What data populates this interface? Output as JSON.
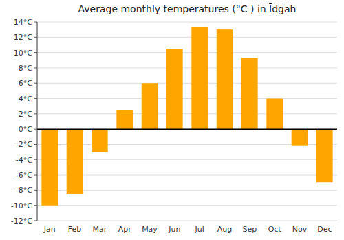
{
  "chart_data": {
    "type": "bar",
    "title": "Average monthly temperatures (°C ) in Īdgāh",
    "categories": [
      "Jan",
      "Feb",
      "Mar",
      "Apr",
      "May",
      "Jun",
      "Jul",
      "Aug",
      "Sep",
      "Oct",
      "Nov",
      "Dec"
    ],
    "values": [
      -10,
      -8.5,
      -3,
      2.5,
      6,
      10.5,
      13.3,
      13,
      9.3,
      4,
      -2.2,
      -7
    ],
    "color": "#FFA500",
    "ylim": [
      -12,
      14
    ],
    "yticks": [
      {
        "value": -12,
        "label": "-12°C"
      },
      {
        "value": -10,
        "label": "-10°C"
      },
      {
        "value": -8,
        "label": "-8°C"
      },
      {
        "value": -6,
        "label": "-6°C"
      },
      {
        "value": -4,
        "label": "-4°C"
      },
      {
        "value": -2,
        "label": "-2°C"
      },
      {
        "value": 0,
        "label": "0°C"
      },
      {
        "value": 2,
        "label": "2°C"
      },
      {
        "value": 4,
        "label": "4°C"
      },
      {
        "value": 6,
        "label": "6°C"
      },
      {
        "value": 8,
        "label": "8°C"
      },
      {
        "value": 10,
        "label": "10°C"
      },
      {
        "value": 12,
        "label": "12°C"
      },
      {
        "value": 14,
        "label": "14°C"
      }
    ],
    "grid": true
  }
}
